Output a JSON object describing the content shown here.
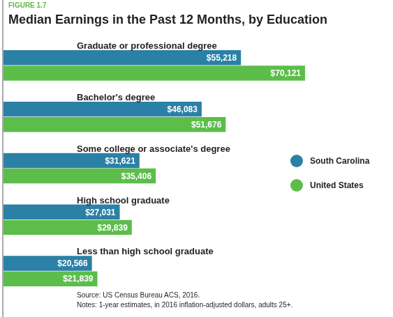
{
  "chart_data": {
    "type": "bar",
    "orientation": "horizontal",
    "figure_number": "FIGURE 1.7",
    "title": "Median Earnings in the Past 12 Months, by Education",
    "categories": [
      "Graduate or professional degree",
      "Bachelor's degree",
      "Some college or associate's degree",
      "High school graduate",
      "Less than high school graduate"
    ],
    "series": [
      {
        "name": "South Carolina",
        "color": "#2b80a5",
        "values": [
          55218,
          46083,
          31621,
          27031,
          20566
        ],
        "value_labels": [
          "$55,218",
          "$46,083",
          "$31,621",
          "$27,031",
          "$20,566"
        ]
      },
      {
        "name": "United States",
        "color": "#5cbd4b",
        "values": [
          70121,
          51676,
          35406,
          29839,
          21839
        ],
        "value_labels": [
          "$70,121",
          "$51,676",
          "$35,406",
          "$29,839",
          "$21,839"
        ]
      }
    ],
    "xlim": [
      0,
      70121
    ],
    "data_labels": true,
    "grid": false,
    "legend": "right",
    "tick_labels": "y",
    "source": "Source: US Census Bureau ACS, 2016.",
    "notes": "Notes: 1-year estimates, in 2016 inflation-adjusted dollars, adults 25+."
  }
}
